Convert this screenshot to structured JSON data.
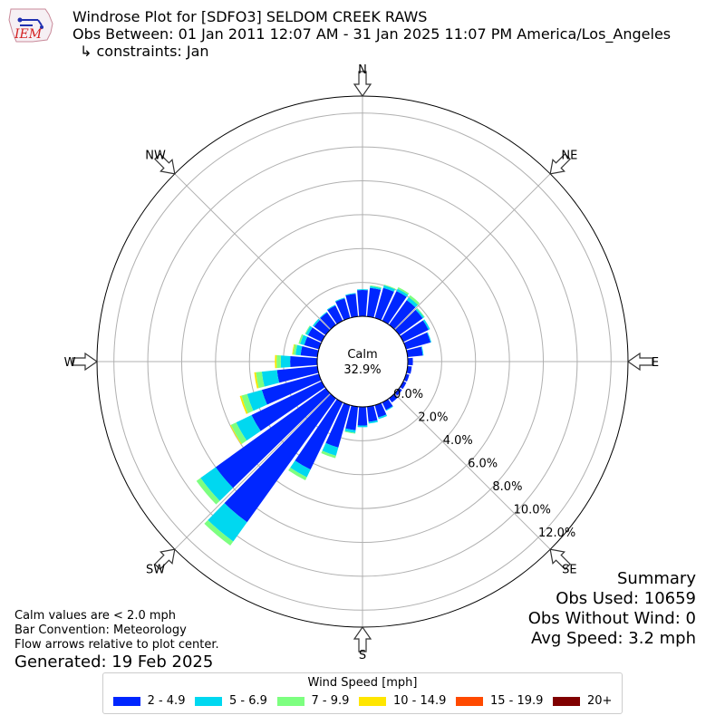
{
  "header": {
    "title": "Windrose Plot for [SDFO3] SELDOM CREEK RAWS",
    "period": "Obs Between: 01 Jan 2011 12:07 AM - 31 Jan 2025 11:07 PM America/Los_Angeles",
    "constraints": "↳ constraints: Jan"
  },
  "logo": {
    "text": "IEM",
    "color": "#d42020"
  },
  "footer": {
    "calm_note": "Calm values are < 2.0 mph",
    "bar_convention": "Bar Convention: Meteorology",
    "flow_note": "Flow arrows relative to plot center.",
    "generated": "Generated: 19 Feb 2025"
  },
  "summary": {
    "title": "Summary",
    "obs_used": "Obs Used: 10659",
    "obs_without_wind": "Obs Without Wind: 0",
    "avg_speed": "Avg Speed: 3.2 mph"
  },
  "chart_data": {
    "type": "windrose",
    "calm_label": "Calm",
    "calm_value": "32.9%",
    "directions": [
      "N",
      "NE",
      "E",
      "SE",
      "S",
      "SW",
      "W",
      "NW"
    ],
    "radial_ticks": [
      "0.0%",
      "2.0%",
      "4.0%",
      "6.0%",
      "8.0%",
      "10.0%",
      "12.0%"
    ],
    "rmax": 13,
    "legend_title": "Wind Speed [mph]",
    "speed_bins": [
      {
        "label": "2 - 4.9",
        "color": "#0026ff"
      },
      {
        "label": "5 - 6.9",
        "color": "#00d8f0"
      },
      {
        "label": "7 - 9.9",
        "color": "#7dff80"
      },
      {
        "label": "10 - 14.9",
        "color": "#ffe600"
      },
      {
        "label": "15 - 19.9",
        "color": "#ff4a00"
      },
      {
        "label": "20+",
        "color": "#800000"
      }
    ],
    "bins": [
      {
        "dir": 0,
        "values": [
          1.55,
          0.05,
          0,
          0,
          0,
          0
        ]
      },
      {
        "dir": 10,
        "values": [
          1.7,
          0.1,
          0.05,
          0,
          0,
          0
        ]
      },
      {
        "dir": 20,
        "values": [
          1.85,
          0.15,
          0.05,
          0,
          0,
          0
        ]
      },
      {
        "dir": 30,
        "values": [
          1.95,
          0.15,
          0.1,
          0,
          0,
          0
        ]
      },
      {
        "dir": 40,
        "values": [
          1.8,
          0.2,
          0.15,
          0,
          0,
          0
        ]
      },
      {
        "dir": 50,
        "values": [
          1.7,
          0.1,
          0.05,
          0,
          0,
          0
        ]
      },
      {
        "dir": 60,
        "values": [
          1.65,
          0.1,
          0,
          0,
          0,
          0
        ]
      },
      {
        "dir": 70,
        "values": [
          1.5,
          0.05,
          0,
          0,
          0,
          0
        ]
      },
      {
        "dir": 80,
        "values": [
          0.9,
          0.05,
          0,
          0,
          0,
          0
        ]
      },
      {
        "dir": 90,
        "values": [
          0.3,
          0,
          0,
          0,
          0,
          0
        ]
      },
      {
        "dir": 100,
        "values": [
          0.25,
          0,
          0,
          0,
          0,
          0
        ]
      },
      {
        "dir": 110,
        "values": [
          0.2,
          0,
          0,
          0,
          0,
          0
        ]
      },
      {
        "dir": 120,
        "values": [
          0.2,
          0,
          0,
          0,
          0,
          0
        ]
      },
      {
        "dir": 130,
        "values": [
          0.2,
          0,
          0,
          0,
          0,
          0
        ]
      },
      {
        "dir": 140,
        "values": [
          0.3,
          0,
          0,
          0,
          0,
          0
        ]
      },
      {
        "dir": 150,
        "values": [
          0.5,
          0.05,
          0,
          0,
          0,
          0
        ]
      },
      {
        "dir": 160,
        "values": [
          0.75,
          0.1,
          0,
          0,
          0,
          0
        ]
      },
      {
        "dir": 170,
        "values": [
          0.9,
          0.1,
          0,
          0,
          0,
          0
        ]
      },
      {
        "dir": 180,
        "values": [
          1.1,
          0.1,
          0,
          0,
          0,
          0
        ]
      },
      {
        "dir": 190,
        "values": [
          1.4,
          0.15,
          0.05,
          0,
          0,
          0
        ]
      },
      {
        "dir": 200,
        "values": [
          2.6,
          0.5,
          0.15,
          0,
          0,
          0
        ]
      },
      {
        "dir": 210,
        "values": [
          4.4,
          0.5,
          0.2,
          0,
          0,
          0
        ]
      },
      {
        "dir": 220,
        "values": [
          9.0,
          1.4,
          0.3,
          0,
          0,
          0
        ]
      },
      {
        "dir": 230,
        "values": [
          8.0,
          1.1,
          0.3,
          0,
          0,
          0
        ]
      },
      {
        "dir": 240,
        "values": [
          4.6,
          1.0,
          0.35,
          0.05,
          0,
          0
        ]
      },
      {
        "dir": 250,
        "values": [
          3.5,
          0.9,
          0.35,
          0.1,
          0,
          0
        ]
      },
      {
        "dir": 260,
        "values": [
          2.4,
          0.9,
          0.35,
          0.1,
          0,
          0
        ]
      },
      {
        "dir": 270,
        "values": [
          1.6,
          0.55,
          0.25,
          0.1,
          0,
          0
        ]
      },
      {
        "dir": 280,
        "values": [
          1.0,
          0.3,
          0.15,
          0.05,
          0,
          0
        ]
      },
      {
        "dir": 290,
        "values": [
          0.9,
          0.25,
          0.1,
          0,
          0,
          0
        ]
      },
      {
        "dir": 300,
        "values": [
          0.9,
          0.15,
          0.05,
          0,
          0,
          0
        ]
      },
      {
        "dir": 310,
        "values": [
          0.85,
          0.1,
          0,
          0,
          0,
          0
        ]
      },
      {
        "dir": 320,
        "values": [
          0.9,
          0.05,
          0,
          0,
          0,
          0
        ]
      },
      {
        "dir": 330,
        "values": [
          1.0,
          0.05,
          0,
          0,
          0,
          0
        ]
      },
      {
        "dir": 340,
        "values": [
          1.2,
          0.05,
          0,
          0,
          0,
          0
        ]
      },
      {
        "dir": 350,
        "values": [
          1.35,
          0.05,
          0,
          0,
          0,
          0
        ]
      }
    ]
  }
}
